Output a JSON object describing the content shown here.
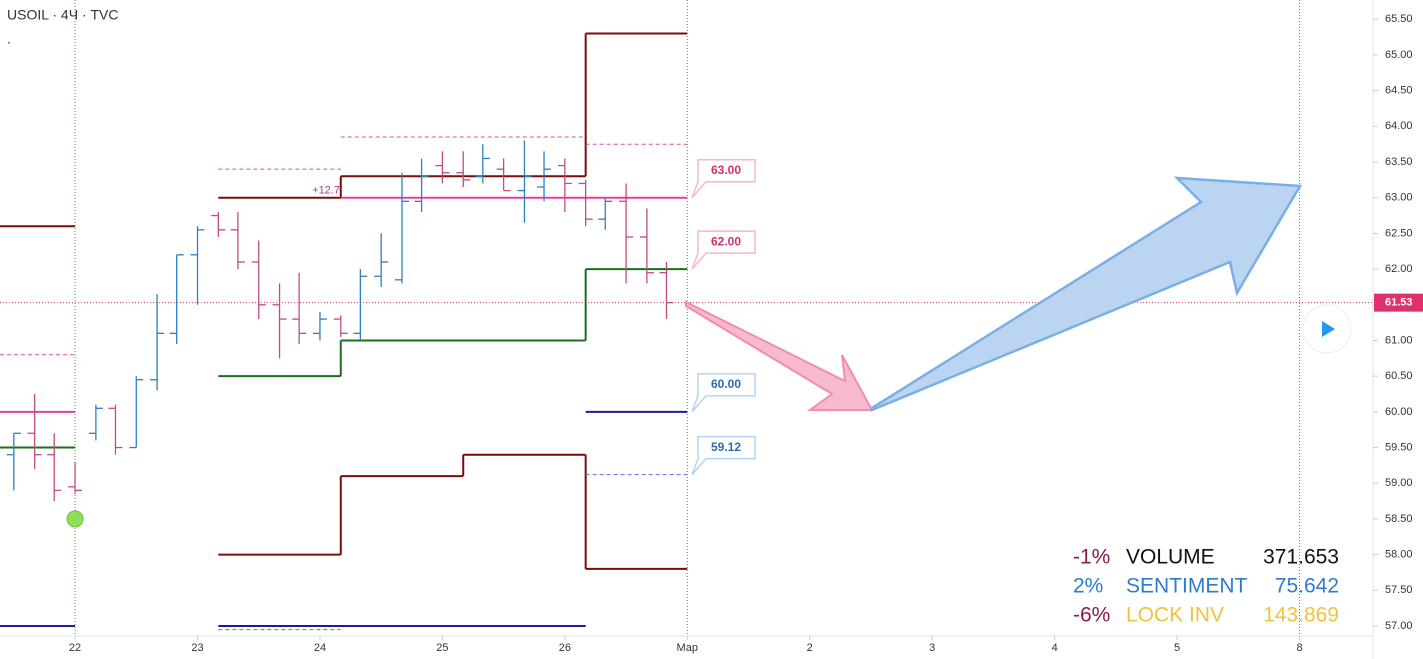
{
  "chart_data": {
    "type": "ohlc",
    "title": "USOIL · 4Ч · TVC",
    "subtitle": ".",
    "xlim": [
      -0.613,
      10.6
    ],
    "ylim": [
      56.86,
      65.77
    ],
    "xticks": [
      {
        "value": 0,
        "label": "22"
      },
      {
        "value": 1,
        "label": "23"
      },
      {
        "value": 2,
        "label": "24"
      },
      {
        "value": 3,
        "label": "25"
      },
      {
        "value": 4,
        "label": "26"
      },
      {
        "value": 5,
        "label": "Мар"
      },
      {
        "value": 6,
        "label": "2"
      },
      {
        "value": 7,
        "label": "3"
      },
      {
        "value": 8,
        "label": "4"
      },
      {
        "value": 9,
        "label": "5"
      },
      {
        "value": 10,
        "label": "8"
      }
    ],
    "yticks": [
      {
        "value": 57,
        "label": "57.00"
      },
      {
        "value": 57.5,
        "label": "57.50"
      },
      {
        "value": 58,
        "label": "58.00"
      },
      {
        "value": 58.5,
        "label": "58.50"
      },
      {
        "value": 59,
        "label": "59.00"
      },
      {
        "value": 59.5,
        "label": "59.50"
      },
      {
        "value": 60,
        "label": "60.00"
      },
      {
        "value": 60.5,
        "label": "60.50"
      },
      {
        "value": 61,
        "label": "61.00"
      },
      {
        "value": 61.5,
        "label": "61.50"
      },
      {
        "value": 62,
        "label": "62.00"
      },
      {
        "value": 62.5,
        "label": "62.50"
      },
      {
        "value": 63,
        "label": "63.00"
      },
      {
        "value": 63.5,
        "label": "63.50"
      },
      {
        "value": 64,
        "label": "64.00"
      },
      {
        "value": 64.5,
        "label": "64.50"
      },
      {
        "value": 65,
        "label": "65.00"
      },
      {
        "value": 65.5,
        "label": "65.50"
      }
    ],
    "vlines": [
      0,
      5,
      10
    ],
    "up_color": "#2f7fbf",
    "down_color": "#c24b84",
    "bars": {
      "x": [
        -0.5,
        -0.33,
        -0.17,
        0,
        0.17,
        0.33,
        0.5,
        0.67,
        0.83,
        1,
        1.17,
        1.33,
        1.5,
        1.67,
        1.83,
        2,
        2.17,
        2.33,
        2.5,
        2.67,
        2.83,
        3,
        3.17,
        3.33,
        3.5,
        3.67,
        3.83,
        4,
        4.17,
        4.33,
        4.5,
        4.67,
        4.83
      ],
      "open": [
        59.4,
        59.7,
        59.4,
        58.95,
        59.7,
        60.05,
        59.5,
        60.45,
        61.1,
        62.2,
        62.75,
        62.55,
        62.1,
        61.5,
        61.3,
        61.1,
        61.3,
        61.1,
        61.9,
        61.85,
        62.95,
        63.45,
        63.35,
        63.3,
        63.4,
        63.1,
        63.15,
        63.45,
        63.2,
        62.7,
        62.95,
        62.45,
        61.95
      ],
      "high": [
        59.7,
        60.25,
        59.7,
        59.3,
        60.1,
        60.1,
        60.5,
        61.65,
        62.2,
        62.6,
        62.8,
        62.8,
        62.4,
        61.8,
        61.95,
        61.4,
        61.35,
        62.0,
        62.5,
        63.35,
        63.55,
        63.65,
        63.65,
        63.75,
        63.55,
        63.8,
        63.65,
        63.55,
        63.25,
        63.0,
        63.2,
        62.85,
        62.1
      ],
      "low": [
        58.9,
        59.2,
        58.75,
        58.85,
        59.6,
        59.4,
        59.5,
        60.3,
        60.95,
        61.5,
        62.45,
        62.0,
        61.3,
        60.75,
        60.95,
        61.0,
        61.05,
        61.0,
        61.75,
        61.8,
        62.8,
        63.2,
        63.15,
        63.2,
        63.1,
        62.65,
        62.95,
        62.8,
        62.6,
        62.55,
        61.8,
        61.8,
        61.3
      ],
      "close": [
        59.7,
        59.4,
        58.9,
        58.9,
        60.05,
        59.5,
        60.45,
        61.1,
        62.2,
        62.55,
        62.55,
        62.1,
        61.5,
        61.3,
        61.1,
        61.3,
        61.1,
        61.9,
        62.1,
        62.95,
        63.3,
        63.35,
        63.25,
        63.55,
        63.1,
        63.3,
        63.4,
        63.2,
        62.7,
        62.95,
        62.45,
        61.95,
        61.53
      ]
    },
    "levels": [
      {
        "color": "#7b0c0c",
        "dash": false,
        "runs": [
          [
            [
              -0.613,
              0,
              62.6
            ]
          ],
          [
            [
              1.17,
              2.17,
              63.0
            ],
            [
              2.17,
              4.17,
              63.3
            ],
            [
              4.17,
              5,
              65.3
            ]
          ]
        ]
      },
      {
        "color": "#7b0c0c",
        "dash": false,
        "runs": [
          [
            [
              1.17,
              2.17,
              58.0
            ],
            [
              2.17,
              3.17,
              59.1
            ],
            [
              3.17,
              4.17,
              59.4
            ],
            [
              4.17,
              5,
              57.8
            ]
          ]
        ]
      },
      {
        "color": "#1b6e1b",
        "dash": false,
        "runs": [
          [
            [
              -0.613,
              0,
              59.5
            ]
          ],
          [
            [
              1.17,
              2.17,
              60.5
            ],
            [
              2.17,
              4.17,
              61.0
            ],
            [
              4.17,
              5,
              62.0
            ]
          ]
        ]
      },
      {
        "color": "#e0409a",
        "dash": false,
        "runs": [
          [
            [
              -0.613,
              0,
              60.0
            ]
          ],
          [
            [
              2.17,
              5,
              63.0
            ]
          ]
        ]
      },
      {
        "color": "#1a1aa8",
        "dash": false,
        "runs": [
          [
            [
              -0.613,
              0,
              57.0
            ]
          ],
          [
            [
              1.17,
              4.17,
              57.0
            ]
          ],
          [
            [
              4.17,
              5,
              60.0
            ]
          ]
        ]
      },
      {
        "color": "#d9529a",
        "dash": true,
        "runs": [
          [
            [
              -0.613,
              0,
              60.8
            ]
          ],
          [
            [
              1.17,
              2.17,
              63.4
            ]
          ],
          [
            [
              2.17,
              4.17,
              63.85
            ]
          ],
          [
            [
              4.17,
              5,
              63.75
            ]
          ]
        ]
      },
      {
        "color": "#6b6bd6",
        "dash": true,
        "runs": [
          [
            [
              1.17,
              2.17,
              56.95
            ]
          ],
          [
            [
              4.17,
              5,
              59.12
            ]
          ]
        ]
      }
    ],
    "marker": {
      "x": 0,
      "y": 58.5,
      "color": "#8ee05a"
    },
    "annotation": {
      "x": 2.05,
      "y": 63.1,
      "label": "+12.7",
      "color": "#b03a8a"
    },
    "price_labels": [
      {
        "value": 63,
        "label": "63.00",
        "color": "#d0306e",
        "border": "#f6b7cb"
      },
      {
        "value": 62,
        "label": "62.00",
        "color": "#d0306e",
        "border": "#f6b7cb"
      },
      {
        "value": 60,
        "label": "60.00",
        "color": "#2b6cb0",
        "border": "#b5d3f2"
      },
      {
        "value": 59.12,
        "label": "59.12",
        "color": "#2b6cb0",
        "border": "#b5d3f2"
      }
    ],
    "last_price": {
      "value": 61.53,
      "label": "61.53",
      "color": "#e0306e"
    },
    "indicator_table": [
      {
        "change": "-1%",
        "label": "VOLUME",
        "value": 371.653,
        "change_color": "#8b1a4a",
        "label_color": "#111111",
        "value_color": "#111111"
      },
      {
        "change": "2%",
        "label": "SENTIMENT",
        "value": 75.642,
        "change_color": "#2e7bcf",
        "label_color": "#2e7bcf",
        "value_color": "#2e7bcf"
      },
      {
        "change": "-6%",
        "label": "LOCK INV",
        "value": 143.869,
        "change_color": "#8b1a4a",
        "label_color": "#f0c33c",
        "value_color": "#f0c33c"
      }
    ]
  }
}
